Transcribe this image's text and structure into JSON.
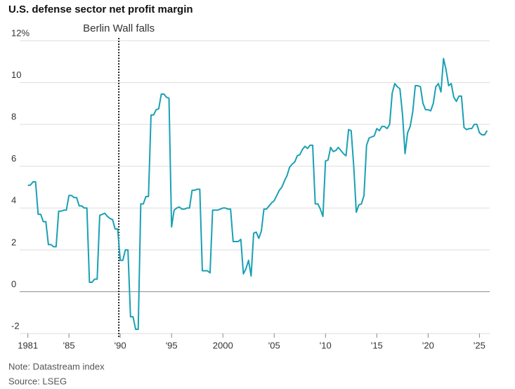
{
  "chart_data": {
    "type": "line",
    "title": "U.S. defense sector net profit margin",
    "note": "Note: Datastream index",
    "source": "Source: LSEG",
    "annotation": {
      "text": "Berlin Wall falls",
      "x": 1989.86
    },
    "xlim": [
      1980.2,
      2026
    ],
    "ylim": [
      -2,
      12
    ],
    "xticks": [
      {
        "value": 1981,
        "label": "1981"
      },
      {
        "value": 1985,
        "label": "'85"
      },
      {
        "value": 1990,
        "label": "'90"
      },
      {
        "value": 1995,
        "label": "'95"
      },
      {
        "value": 2000,
        "label": "2000"
      },
      {
        "value": 2005,
        "label": "'05"
      },
      {
        "value": 2010,
        "label": "'10"
      },
      {
        "value": 2015,
        "label": "'15"
      },
      {
        "value": 2020,
        "label": "'20"
      },
      {
        "value": 2025,
        "label": "'25"
      }
    ],
    "yticks": [
      -2,
      0,
      2,
      4,
      6,
      8,
      10,
      {
        "value": 12,
        "label": "12%"
      }
    ],
    "grid": true,
    "x": [
      1981,
      1981.25,
      1981.5,
      1981.75,
      1982,
      1982.25,
      1982.5,
      1982.75,
      1983,
      1983.25,
      1983.5,
      1983.75,
      1984,
      1984.25,
      1984.5,
      1984.75,
      1985,
      1985.25,
      1985.5,
      1985.75,
      1986,
      1986.25,
      1986.5,
      1986.75,
      1987,
      1987.25,
      1987.5,
      1987.75,
      1988,
      1988.25,
      1988.5,
      1988.75,
      1989,
      1989.25,
      1989.5,
      1989.75,
      1990,
      1990.25,
      1990.5,
      1990.75,
      1991,
      1991.25,
      1991.5,
      1991.75,
      1992,
      1992.25,
      1992.5,
      1992.75,
      1993,
      1993.25,
      1993.5,
      1993.75,
      1994,
      1994.25,
      1994.5,
      1994.75,
      1995,
      1995.25,
      1995.5,
      1995.75,
      1996,
      1996.25,
      1996.5,
      1996.75,
      1997,
      1997.25,
      1997.5,
      1997.75,
      1998,
      1998.25,
      1998.5,
      1998.75,
      1999,
      1999.25,
      1999.5,
      1999.75,
      2000,
      2000.25,
      2000.5,
      2000.75,
      2001,
      2001.25,
      2001.5,
      2001.75,
      2002,
      2002.25,
      2002.5,
      2002.75,
      2003,
      2003.25,
      2003.5,
      2003.75,
      2004,
      2004.25,
      2004.5,
      2004.75,
      2005,
      2005.25,
      2005.5,
      2005.75,
      2006,
      2006.25,
      2006.5,
      2006.75,
      2007,
      2007.25,
      2007.5,
      2007.75,
      2008,
      2008.25,
      2008.5,
      2008.75,
      2009,
      2009.25,
      2009.5,
      2009.75,
      2010,
      2010.25,
      2010.5,
      2010.75,
      2011,
      2011.25,
      2011.5,
      2011.75,
      2012,
      2012.25,
      2012.5,
      2012.75,
      2013,
      2013.25,
      2013.5,
      2013.75,
      2014,
      2014.25,
      2014.5,
      2014.75,
      2015,
      2015.25,
      2015.5,
      2015.75,
      2016,
      2016.25,
      2016.5,
      2016.75,
      2017,
      2017.25,
      2017.5,
      2017.75,
      2018,
      2018.25,
      2018.5,
      2018.75,
      2019,
      2019.25,
      2019.5,
      2019.75,
      2020,
      2020.25,
      2020.5,
      2020.75,
      2021,
      2021.25,
      2021.5,
      2021.75,
      2022,
      2022.25,
      2022.5,
      2022.75,
      2023,
      2023.25,
      2023.5,
      2023.75,
      2024,
      2024.25,
      2024.5,
      2024.75,
      2025,
      2025.25,
      2025.5,
      2025.75
    ],
    "series": [
      {
        "color": "#1aa0b4",
        "values": [
          5.08,
          5.1,
          5.25,
          5.25,
          3.7,
          3.7,
          3.35,
          3.35,
          2.25,
          2.25,
          2.15,
          2.15,
          3.85,
          3.85,
          3.9,
          3.9,
          4.6,
          4.6,
          4.5,
          4.5,
          4.1,
          4.1,
          4.0,
          4.0,
          0.45,
          0.45,
          0.6,
          0.6,
          3.65,
          3.7,
          3.75,
          3.6,
          3.5,
          3.45,
          3.0,
          3.0,
          1.5,
          1.5,
          2.0,
          2.0,
          -1.2,
          -1.2,
          -1.8,
          -1.8,
          4.2,
          4.2,
          4.55,
          4.55,
          8.45,
          8.45,
          8.7,
          8.75,
          9.45,
          9.45,
          9.3,
          9.25,
          3.1,
          3.9,
          4.0,
          4.05,
          3.95,
          3.95,
          4.0,
          4.0,
          4.85,
          4.85,
          4.9,
          4.9,
          1.0,
          1.0,
          1.0,
          0.9,
          3.9,
          3.9,
          3.9,
          3.95,
          4.0,
          4.0,
          3.95,
          3.95,
          2.4,
          2.4,
          2.4,
          2.5,
          0.85,
          1.1,
          1.5,
          0.75,
          2.8,
          2.85,
          2.55,
          2.9,
          3.95,
          3.95,
          4.1,
          4.25,
          4.35,
          4.6,
          4.85,
          5.0,
          5.3,
          5.55,
          5.95,
          6.1,
          6.2,
          6.5,
          6.55,
          6.8,
          6.95,
          6.85,
          7.0,
          7.0,
          4.2,
          4.2,
          3.95,
          3.6,
          6.25,
          6.3,
          6.9,
          6.7,
          6.75,
          6.9,
          6.75,
          6.6,
          6.5,
          7.75,
          7.7,
          6.0,
          3.8,
          4.15,
          4.2,
          4.6,
          7.0,
          7.35,
          7.4,
          7.45,
          7.8,
          7.7,
          7.9,
          7.9,
          7.8,
          8.0,
          9.5,
          9.95,
          9.8,
          9.7,
          8.5,
          6.6,
          7.6,
          7.9,
          8.6,
          9.85,
          9.85,
          9.8,
          9.0,
          8.7,
          8.7,
          8.65,
          9.0,
          9.8,
          9.95,
          9.55,
          11.15,
          10.6,
          9.85,
          9.95,
          9.3,
          9.1,
          9.35,
          9.35,
          7.85,
          7.75,
          7.8,
          7.8,
          8.0,
          8.0,
          7.6,
          7.5,
          7.5,
          7.7
        ]
      }
    ]
  }
}
